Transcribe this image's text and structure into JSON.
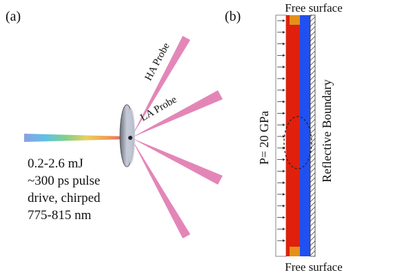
{
  "panels": {
    "a": {
      "label": "(a)",
      "probes": [
        "HA Probe",
        "LA Probe"
      ],
      "drive": [
        "0.2-2.6 mJ",
        "~300 ps pulse",
        "drive, chirped",
        "775-815 nm"
      ]
    },
    "b": {
      "label": "(b)",
      "top": "Free surface",
      "bottom": "Free surface",
      "pressure": "P= 20 GPa",
      "boundary": "Reflective Boundary"
    }
  }
}
